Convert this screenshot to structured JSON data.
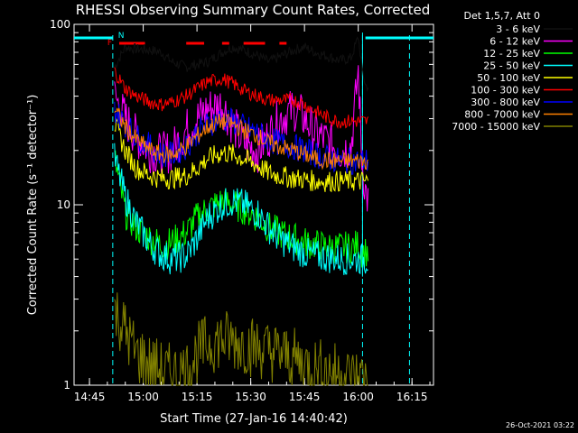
{
  "chart_data": {
    "type": "line",
    "title": "RHESSI Observing Summary Count Rates, Corrected",
    "xlabel": "Start Time (27-Jan-16 14:40:42)",
    "ylabel": "Corrected Count Rate (s⁻¹ detector⁻¹)",
    "y_scale": "log",
    "ylim": [
      1,
      100
    ],
    "xlim_minutes": [
      "14:40:42",
      "16:21:00"
    ],
    "x_tick_labels": [
      "14:45",
      "15:00",
      "15:15",
      "15:30",
      "15:45",
      "16:00",
      "16:15"
    ],
    "x_ticks_minutes_since_1440": [
      5,
      20,
      35,
      50,
      65,
      80,
      95
    ],
    "y_tick_labels": [
      "1",
      "10",
      "100"
    ],
    "y_ticks": [
      1,
      10,
      100
    ],
    "legend_header": "Det 1,5,7, Att 0",
    "legend_position": "top-right",
    "series": [
      {
        "name": "3 - 6 keV",
        "color": "#000000",
        "x": [
          12,
          15,
          18,
          22,
          25,
          28,
          32,
          35,
          38,
          42,
          45,
          48,
          52,
          55,
          58,
          62,
          65,
          68,
          72,
          75,
          78,
          80,
          81,
          82,
          83
        ],
        "values": [
          58,
          75,
          73,
          72,
          70,
          62,
          58,
          60,
          62,
          70,
          75,
          72,
          67,
          62,
          66,
          72,
          75,
          70,
          66,
          63,
          65,
          85,
          58,
          46,
          45
        ]
      },
      {
        "name": "6 - 12 keV",
        "color": "#ff00ff",
        "x": [
          12,
          15,
          18,
          22,
          25,
          28,
          32,
          35,
          38,
          42,
          45,
          48,
          52,
          55,
          58,
          62,
          65,
          68,
          72,
          75,
          78,
          80,
          81,
          82,
          83
        ],
        "values": [
          40,
          30,
          24,
          20,
          19,
          20,
          26,
          30,
          34,
          36,
          28,
          22,
          20,
          24,
          30,
          34,
          30,
          25,
          22,
          20,
          21,
          55,
          18,
          12,
          10
        ]
      },
      {
        "name": "12 - 25 keV",
        "color": "#00ff00",
        "x": [
          12,
          15,
          18,
          22,
          25,
          28,
          32,
          35,
          38,
          42,
          45,
          48,
          52,
          55,
          58,
          62,
          65,
          68,
          72,
          75,
          78,
          80,
          81,
          82,
          83
        ],
        "values": [
          18,
          9,
          7.5,
          6.5,
          6,
          6.2,
          7,
          8.5,
          9.5,
          10.5,
          10,
          9.5,
          8.5,
          7.5,
          7,
          6.5,
          6.2,
          6,
          5.8,
          5.8,
          5.8,
          6,
          5.5,
          5.5,
          5.5
        ]
      },
      {
        "name": "25 - 50 keV",
        "color": "#00ffff",
        "x": [
          12,
          15,
          18,
          22,
          25,
          28,
          32,
          35,
          38,
          42,
          45,
          48,
          52,
          55,
          58,
          62,
          65,
          68,
          72,
          75,
          78,
          80,
          81,
          82,
          83
        ],
        "values": [
          18,
          11,
          8,
          6,
          5.3,
          5,
          5.2,
          6.5,
          8.5,
          10,
          10.5,
          10,
          9,
          7.5,
          6.5,
          5.8,
          5.4,
          5.2,
          5.1,
          5,
          5,
          5,
          5,
          5,
          5
        ]
      },
      {
        "name": "50 - 100 keV",
        "color": "#ffff00",
        "x": [
          12,
          15,
          18,
          22,
          25,
          28,
          32,
          35,
          38,
          42,
          45,
          48,
          52,
          55,
          58,
          62,
          65,
          68,
          72,
          75,
          78,
          80,
          81,
          82,
          83
        ],
        "values": [
          28,
          20,
          16,
          14.5,
          14,
          14,
          14.5,
          16,
          18,
          19.5,
          19,
          18,
          16.5,
          15,
          14.5,
          14,
          13.8,
          13.5,
          13.5,
          13.5,
          13.5,
          13.5,
          13.5,
          13.5,
          13.5
        ]
      },
      {
        "name": "100 - 300 keV",
        "color": "#ff0000",
        "x": [
          12,
          15,
          18,
          22,
          25,
          28,
          32,
          35,
          38,
          42,
          45,
          48,
          52,
          55,
          58,
          62,
          65,
          68,
          72,
          75,
          78,
          80,
          81,
          82,
          83
        ],
        "values": [
          55,
          44,
          40,
          37,
          36,
          37,
          40,
          44,
          48,
          50,
          47,
          43,
          40,
          38,
          38,
          38,
          36,
          33,
          30,
          29,
          29,
          29,
          29,
          29,
          29
        ]
      },
      {
        "name": "300 - 800 keV",
        "color": "#0000ff",
        "x": [
          12,
          15,
          18,
          22,
          25,
          28,
          32,
          35,
          38,
          42,
          45,
          48,
          52,
          55,
          58,
          62,
          65,
          68,
          72,
          75,
          78,
          80,
          81,
          82,
          83
        ],
        "values": [
          34,
          28,
          24,
          21,
          19,
          19,
          21,
          25,
          28,
          30,
          29,
          27,
          25,
          23,
          22,
          21,
          20,
          19,
          18,
          17.5,
          17.5,
          17.5,
          17.5,
          17.5,
          17.5
        ]
      },
      {
        "name": "800 - 7000 keV",
        "color": "#ff8000",
        "x": [
          12,
          15,
          18,
          22,
          25,
          28,
          32,
          35,
          38,
          42,
          45,
          48,
          52,
          55,
          58,
          62,
          65,
          68,
          72,
          75,
          78,
          80,
          81,
          82,
          83
        ],
        "values": [
          34,
          27,
          23,
          20,
          19,
          19,
          21,
          24,
          27,
          29,
          28,
          26,
          24,
          22,
          21,
          20,
          19,
          18,
          17.5,
          17.5,
          17.5,
          17.5,
          17.5,
          17.5,
          17.5
        ]
      },
      {
        "name": "7000 - 15000 keV",
        "color": "#808000",
        "x": [
          12,
          15,
          18,
          22,
          25,
          28,
          32,
          35,
          38,
          42,
          45,
          48,
          52,
          55,
          58,
          62,
          65,
          68,
          72,
          75,
          78,
          80,
          81,
          82,
          83
        ],
        "values": [
          2.6,
          2.0,
          1.5,
          1.3,
          1.2,
          1.15,
          1.2,
          1.5,
          1.7,
          1.8,
          1.75,
          1.7,
          1.6,
          1.55,
          1.5,
          1.4,
          1.3,
          1.25,
          1.2,
          1.15,
          1.1,
          1.1,
          1.1,
          1.1,
          1.1
        ]
      }
    ],
    "flags": [
      {
        "label": "F",
        "color": "#ff0000"
      },
      {
        "label": "N",
        "color": "#00ffff"
      }
    ],
    "timestamp": "26-Oct-2021 03:22"
  }
}
